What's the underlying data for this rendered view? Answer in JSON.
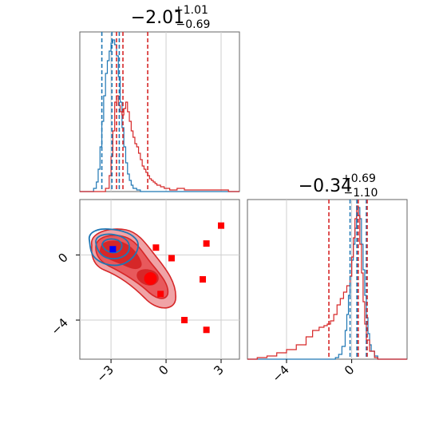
{
  "chart_data": {
    "type": "corner",
    "parameters": [
      {
        "title": {
          "median": "−2.01",
          "plus": "+1.01",
          "minus": "−0.69"
        },
        "range": [
          -4.7,
          4.0
        ],
        "ticks": [
          {
            "value": -3,
            "label": "−3"
          },
          {
            "value": 0,
            "label": "0"
          },
          {
            "value": 3,
            "label": "3"
          }
        ]
      },
      {
        "title": {
          "median": "−0.34",
          "plus": "+0.69",
          "minus": "−1.10"
        },
        "range": [
          -6.4,
          3.4
        ],
        "ticks": [
          {
            "value": -4,
            "label": "−4"
          },
          {
            "value": 0,
            "label": "0"
          }
        ]
      }
    ],
    "series": [
      {
        "color": "#1f77b4",
        "hist_x": [
          [
            -4.7,
            0
          ],
          [
            -4.2,
            0
          ],
          [
            -3.95,
            2
          ],
          [
            -3.8,
            6
          ],
          [
            -3.7,
            14
          ],
          [
            -3.6,
            28
          ],
          [
            -3.5,
            44
          ],
          [
            -3.4,
            60
          ],
          [
            -3.3,
            74
          ],
          [
            -3.2,
            82
          ],
          [
            -3.1,
            88
          ],
          [
            -3.0,
            93
          ],
          [
            -2.9,
            95
          ],
          [
            -2.8,
            92
          ],
          [
            -2.7,
            85
          ],
          [
            -2.6,
            72
          ],
          [
            -2.5,
            56
          ],
          [
            -2.4,
            40
          ],
          [
            -2.3,
            28
          ],
          [
            -2.2,
            18
          ],
          [
            -2.1,
            11
          ],
          [
            -2.0,
            7
          ],
          [
            -1.9,
            4
          ],
          [
            -1.8,
            2
          ],
          [
            -1.6,
            1
          ],
          [
            -1.4,
            0
          ],
          [
            4.0,
            0
          ]
        ],
        "quantiles_x": [
          -3.5,
          -2.95,
          -2.55
        ],
        "hist_y": [
          [
            -6.4,
            0
          ],
          [
            -1.2,
            0
          ],
          [
            -1.0,
            1
          ],
          [
            -0.8,
            3
          ],
          [
            -0.6,
            8
          ],
          [
            -0.4,
            18
          ],
          [
            -0.3,
            28
          ],
          [
            -0.2,
            40
          ],
          [
            -0.1,
            52
          ],
          [
            0.0,
            62
          ],
          [
            0.1,
            72
          ],
          [
            0.2,
            82
          ],
          [
            0.3,
            90
          ],
          [
            0.4,
            95
          ],
          [
            0.5,
            88
          ],
          [
            0.6,
            72
          ],
          [
            0.7,
            56
          ],
          [
            0.8,
            40
          ],
          [
            0.9,
            26
          ],
          [
            1.0,
            16
          ],
          [
            1.1,
            9
          ],
          [
            1.2,
            5
          ],
          [
            1.4,
            2
          ],
          [
            1.6,
            0
          ],
          [
            3.4,
            0
          ]
        ],
        "quantiles_y": [
          -0.1,
          0.32,
          0.9
        ]
      },
      {
        "color": "#d62728",
        "hist_x": [
          [
            -4.7,
            0
          ],
          [
            -3.5,
            0
          ],
          [
            -3.3,
            2
          ],
          [
            -3.1,
            10
          ],
          [
            -3.0,
            22
          ],
          [
            -2.9,
            38
          ],
          [
            -2.8,
            56
          ],
          [
            -2.7,
            60
          ],
          [
            -2.6,
            54
          ],
          [
            -2.5,
            50
          ],
          [
            -2.4,
            48
          ],
          [
            -2.3,
            52
          ],
          [
            -2.2,
            56
          ],
          [
            -2.1,
            50
          ],
          [
            -2.0,
            44
          ],
          [
            -1.9,
            38
          ],
          [
            -1.8,
            34
          ],
          [
            -1.7,
            30
          ],
          [
            -1.6,
            28
          ],
          [
            -1.5,
            24
          ],
          [
            -1.4,
            20
          ],
          [
            -1.3,
            16
          ],
          [
            -1.2,
            14
          ],
          [
            -1.1,
            12
          ],
          [
            -1.0,
            10
          ],
          [
            -0.9,
            8
          ],
          [
            -0.8,
            7
          ],
          [
            -0.7,
            6
          ],
          [
            -0.6,
            5
          ],
          [
            -0.5,
            4
          ],
          [
            -0.3,
            3
          ],
          [
            -0.1,
            2
          ],
          [
            0.2,
            1
          ],
          [
            0.6,
            2
          ],
          [
            1.0,
            1
          ],
          [
            1.4,
            1
          ],
          [
            2.0,
            1
          ],
          [
            2.8,
            1
          ],
          [
            3.4,
            0
          ],
          [
            4.0,
            0
          ]
        ],
        "quantiles_x": [
          -2.7,
          -2.35,
          -1.0
        ],
        "hist_y": [
          [
            -6.4,
            0
          ],
          [
            -5.8,
            1
          ],
          [
            -5.2,
            2
          ],
          [
            -4.6,
            4
          ],
          [
            -4.0,
            6
          ],
          [
            -3.4,
            9
          ],
          [
            -2.8,
            14
          ],
          [
            -2.4,
            18
          ],
          [
            -2.0,
            20
          ],
          [
            -1.7,
            21
          ],
          [
            -1.5,
            22
          ],
          [
            -1.3,
            24
          ],
          [
            -1.1,
            28
          ],
          [
            -0.9,
            34
          ],
          [
            -0.7,
            38
          ],
          [
            -0.5,
            42
          ],
          [
            -0.3,
            46
          ],
          [
            -0.1,
            52
          ],
          [
            0.0,
            64
          ],
          [
            0.1,
            76
          ],
          [
            0.2,
            88
          ],
          [
            0.3,
            96
          ],
          [
            0.4,
            90
          ],
          [
            0.5,
            72
          ],
          [
            0.6,
            54
          ],
          [
            0.7,
            36
          ],
          [
            0.8,
            22
          ],
          [
            0.9,
            12
          ],
          [
            1.1,
            5
          ],
          [
            1.4,
            1
          ],
          [
            1.6,
            0
          ],
          [
            3.4,
            0
          ]
        ],
        "quantiles_y": [
          -1.4,
          0.4,
          0.95
        ]
      }
    ],
    "scatter_points": [
      [
        -0.55,
        0.45
      ],
      [
        0.3,
        -0.2
      ],
      [
        2.2,
        0.7
      ],
      [
        3.0,
        1.8
      ],
      [
        -0.9,
        -1.4
      ],
      [
        2.0,
        -1.5
      ],
      [
        -0.3,
        -2.4
      ],
      [
        1.0,
        -4.0
      ],
      [
        2.2,
        -4.6
      ]
    ],
    "marker_points": [
      {
        "x": -2.9,
        "y": 0.35,
        "color": "#0000ff",
        "shape": "square"
      },
      {
        "x": -0.85,
        "y": -1.45,
        "color": "#ff0000",
        "shape": "circle"
      }
    ],
    "grid": true
  }
}
